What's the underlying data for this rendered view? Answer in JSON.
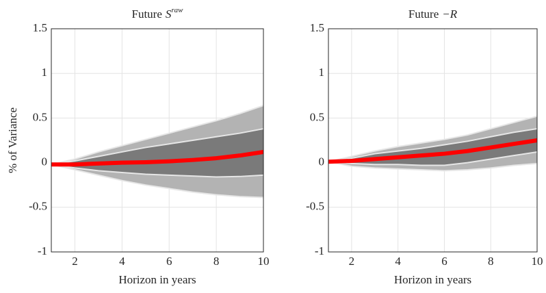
{
  "chart_data": [
    {
      "type": "line",
      "title": "Future",
      "title_symbol": "S",
      "title_superscript": "raw",
      "xlabel": "Horizon in years",
      "ylabel": "% of Variance",
      "x": [
        1,
        2,
        3,
        4,
        5,
        6,
        7,
        8,
        9,
        10
      ],
      "xlim": [
        1,
        10
      ],
      "xticks": [
        2,
        4,
        6,
        8,
        10
      ],
      "ylim": [
        -1,
        1.5
      ],
      "yticks": [
        -1,
        -0.5,
        0,
        0.5,
        1,
        1.5
      ],
      "grid": true,
      "bands": [
        {
          "color": "#b3b3b3",
          "upper": [
            -0.02,
            0.04,
            0.12,
            0.19,
            0.26,
            0.33,
            0.4,
            0.47,
            0.55,
            0.64
          ],
          "lower": [
            -0.02,
            -0.08,
            -0.14,
            -0.2,
            -0.25,
            -0.29,
            -0.33,
            -0.36,
            -0.38,
            -0.39
          ]
        },
        {
          "color": "#7a7a7a",
          "upper": [
            -0.02,
            0.02,
            0.07,
            0.12,
            0.17,
            0.21,
            0.25,
            0.29,
            0.33,
            0.38
          ],
          "lower": [
            -0.02,
            -0.06,
            -0.09,
            -0.11,
            -0.13,
            -0.14,
            -0.15,
            -0.16,
            -0.155,
            -0.14
          ]
        }
      ],
      "line": {
        "color": "#ff0000",
        "values": [
          -0.02,
          -0.02,
          -0.01,
          0,
          0.005,
          0.015,
          0.03,
          0.05,
          0.08,
          0.12
        ]
      }
    },
    {
      "type": "line",
      "title": "Future",
      "title_symbol": "−R",
      "xlabel": "Horizon in years",
      "x": [
        1,
        2,
        3,
        4,
        5,
        6,
        7,
        8,
        9,
        10
      ],
      "xlim": [
        1,
        10
      ],
      "xticks": [
        2,
        4,
        6,
        8,
        10
      ],
      "ylim": [
        -1,
        1.5
      ],
      "yticks": [
        -1,
        -0.5,
        0,
        0.5,
        1,
        1.5
      ],
      "grid": true,
      "bands": [
        {
          "color": "#b3b3b3",
          "upper": [
            0.01,
            0.07,
            0.13,
            0.18,
            0.22,
            0.26,
            0.31,
            0.38,
            0.45,
            0.52
          ],
          "lower": [
            0.01,
            -0.04,
            -0.06,
            -0.07,
            -0.08,
            -0.09,
            -0.08,
            -0.06,
            -0.03,
            -0.01
          ]
        },
        {
          "color": "#7a7a7a",
          "upper": [
            0.01,
            0.05,
            0.1,
            0.13,
            0.16,
            0.2,
            0.24,
            0.29,
            0.34,
            0.38
          ],
          "lower": [
            0.01,
            -0.01,
            -0.02,
            -0.02,
            -0.03,
            -0.03,
            0.0,
            0.04,
            0.08,
            0.12
          ]
        }
      ],
      "line": {
        "color": "#ff0000",
        "values": [
          0.01,
          0.02,
          0.04,
          0.06,
          0.08,
          0.1,
          0.13,
          0.17,
          0.21,
          0.25
        ]
      }
    }
  ]
}
